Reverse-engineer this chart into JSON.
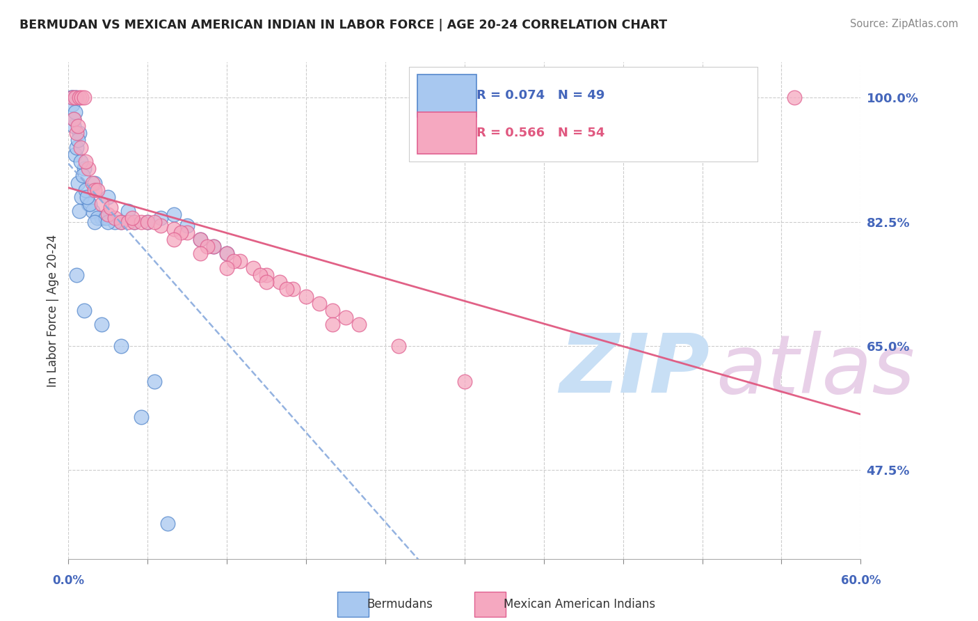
{
  "title": "BERMUDAN VS MEXICAN AMERICAN INDIAN IN LABOR FORCE | AGE 20-24 CORRELATION CHART",
  "source": "Source: ZipAtlas.com",
  "ylabel_label": "In Labor Force | Age 20-24",
  "x_min": 0.0,
  "x_max": 60.0,
  "y_min": 35.0,
  "y_max": 105.0,
  "ylabel_ticks": [
    47.5,
    65.0,
    82.5,
    100.0
  ],
  "blue_R": 0.074,
  "blue_N": 49,
  "pink_R": 0.566,
  "pink_N": 54,
  "blue_color": "#a8c8f0",
  "blue_edge": "#5588cc",
  "pink_color": "#f5a8c0",
  "pink_edge": "#e06090",
  "legend_blue_label": "Bermudans",
  "legend_pink_label": "Mexican American Indians",
  "grid_color": "#cccccc",
  "title_color": "#222222",
  "blue_tick_color": "#4466bb",
  "pink_trend_color": "#e05880",
  "blue_trend_color": "#88aadd",
  "watermark_color": "#ddeeff",
  "blue_scatter_x": [
    0.2,
    0.3,
    0.5,
    0.6,
    0.3,
    0.8,
    1.2,
    2.0,
    3.0,
    4.5,
    0.4,
    0.5,
    1.5,
    2.5,
    4.0,
    5.0,
    6.0,
    7.0,
    8.0,
    9.0,
    10.0,
    11.0,
    12.0,
    0.7,
    1.0,
    1.8,
    2.2,
    3.5,
    0.9,
    1.3,
    0.6,
    1.1,
    0.4,
    0.8,
    1.6,
    2.8,
    0.3,
    0.5,
    0.7,
    1.4,
    2.0,
    3.0,
    0.6,
    1.2,
    2.5,
    4.0,
    6.5,
    5.5,
    7.5
  ],
  "blue_scatter_y": [
    100.0,
    100.0,
    100.0,
    100.0,
    100.0,
    95.0,
    90.0,
    88.0,
    86.0,
    84.0,
    96.0,
    92.0,
    85.0,
    83.0,
    82.5,
    82.5,
    82.5,
    83.0,
    83.5,
    82.0,
    80.0,
    79.0,
    78.0,
    88.0,
    86.0,
    84.0,
    83.0,
    82.5,
    91.0,
    87.0,
    93.0,
    89.0,
    97.0,
    84.0,
    85.0,
    83.0,
    99.0,
    98.0,
    94.0,
    86.0,
    82.5,
    82.5,
    75.0,
    70.0,
    68.0,
    65.0,
    60.0,
    55.0,
    40.0
  ],
  "pink_scatter_x": [
    0.3,
    0.5,
    0.8,
    1.0,
    1.2,
    0.4,
    0.6,
    0.9,
    1.5,
    1.8,
    2.0,
    2.5,
    3.0,
    3.5,
    4.0,
    4.5,
    5.0,
    5.5,
    6.0,
    7.0,
    8.0,
    9.0,
    10.0,
    11.0,
    12.0,
    13.0,
    14.0,
    15.0,
    16.0,
    17.0,
    18.0,
    19.0,
    20.0,
    21.0,
    22.0,
    0.7,
    1.3,
    2.2,
    3.2,
    4.8,
    6.5,
    8.5,
    10.5,
    12.5,
    14.5,
    16.5,
    25.0,
    30.0,
    20.0,
    15.0,
    12.0,
    10.0,
    8.0,
    55.0
  ],
  "pink_scatter_y": [
    100.0,
    100.0,
    100.0,
    100.0,
    100.0,
    97.0,
    95.0,
    93.0,
    90.0,
    88.0,
    87.0,
    85.0,
    83.5,
    83.0,
    82.5,
    82.5,
    82.5,
    82.5,
    82.5,
    82.0,
    81.5,
    81.0,
    80.0,
    79.0,
    78.0,
    77.0,
    76.0,
    75.0,
    74.0,
    73.0,
    72.0,
    71.0,
    70.0,
    69.0,
    68.0,
    96.0,
    91.0,
    87.0,
    84.5,
    83.0,
    82.5,
    81.0,
    79.0,
    77.0,
    75.0,
    73.0,
    65.0,
    60.0,
    68.0,
    74.0,
    76.0,
    78.0,
    80.0,
    100.0
  ]
}
